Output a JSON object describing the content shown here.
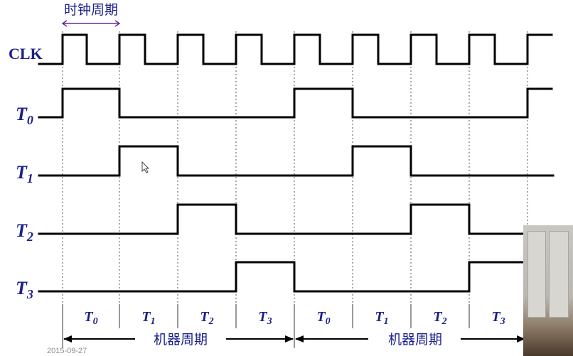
{
  "header": {
    "clock_period_label": "时钟周期"
  },
  "signals": [
    {
      "id": "clk",
      "label": "CLK",
      "subscript": ""
    },
    {
      "id": "t0",
      "label": "T",
      "subscript": "0"
    },
    {
      "id": "t1",
      "label": "T",
      "subscript": "1"
    },
    {
      "id": "t2",
      "label": "T",
      "subscript": "2"
    },
    {
      "id": "t3",
      "label": "T",
      "subscript": "3"
    }
  ],
  "slots": [
    {
      "label": "T",
      "subscript": "0"
    },
    {
      "label": "T",
      "subscript": "1"
    },
    {
      "label": "T",
      "subscript": "2"
    },
    {
      "label": "T",
      "subscript": "3"
    },
    {
      "label": "T",
      "subscript": "0"
    },
    {
      "label": "T",
      "subscript": "1"
    },
    {
      "label": "T",
      "subscript": "2"
    },
    {
      "label": "T",
      "subscript": "3"
    }
  ],
  "machine_cycle_label": "机器周期",
  "footer": {
    "date": "2015-09-27"
  },
  "colors": {
    "label": "#1a1f8c",
    "wave": "#000000",
    "clock_period_bracket": "#6a2a9a"
  },
  "icons": {
    "cursor": "pointer-cursor-icon"
  }
}
